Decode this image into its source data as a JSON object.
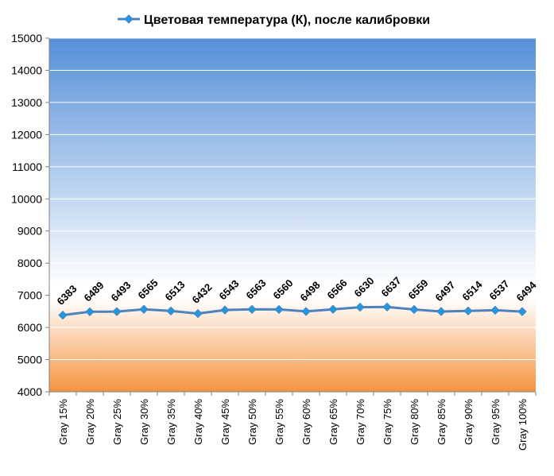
{
  "chart_data": {
    "type": "line",
    "title": "Цветовая температура (К), после калибровки",
    "categories": [
      "Gray 15%",
      "Gray 20%",
      "Gray 25%",
      "Gray 30%",
      "Gray 35%",
      "Gray 40%",
      "Gray 45%",
      "Gray 50%",
      "Gray 55%",
      "Gray 60%",
      "Gray 65%",
      "Gray 70%",
      "Gray 75%",
      "Gray 80%",
      "Gray 85%",
      "Gray 90%",
      "Gray 95%",
      "Gray 100%"
    ],
    "series": [
      {
        "name": "Цветовая температура (К), после калибровки",
        "values": [
          6383,
          6489,
          6493,
          6565,
          6513,
          6432,
          6543,
          6563,
          6560,
          6498,
          6566,
          6630,
          6637,
          6559,
          6497,
          6514,
          6537,
          6494
        ],
        "color": "#4F81BD",
        "marker_color": "#1E9BE0"
      }
    ],
    "ylim": [
      4000,
      15000
    ],
    "yticks": [
      "4000",
      "5000",
      "6000",
      "7000",
      "8000",
      "9000",
      "10000",
      "11000",
      "12000",
      "13000",
      "14000",
      "15000"
    ],
    "grid": true,
    "legend": "top",
    "background": {
      "top_color": "#5590D8",
      "mid_color": "#FFFFFF",
      "bottom_color": "#F5933F",
      "white_at": 7200
    }
  }
}
